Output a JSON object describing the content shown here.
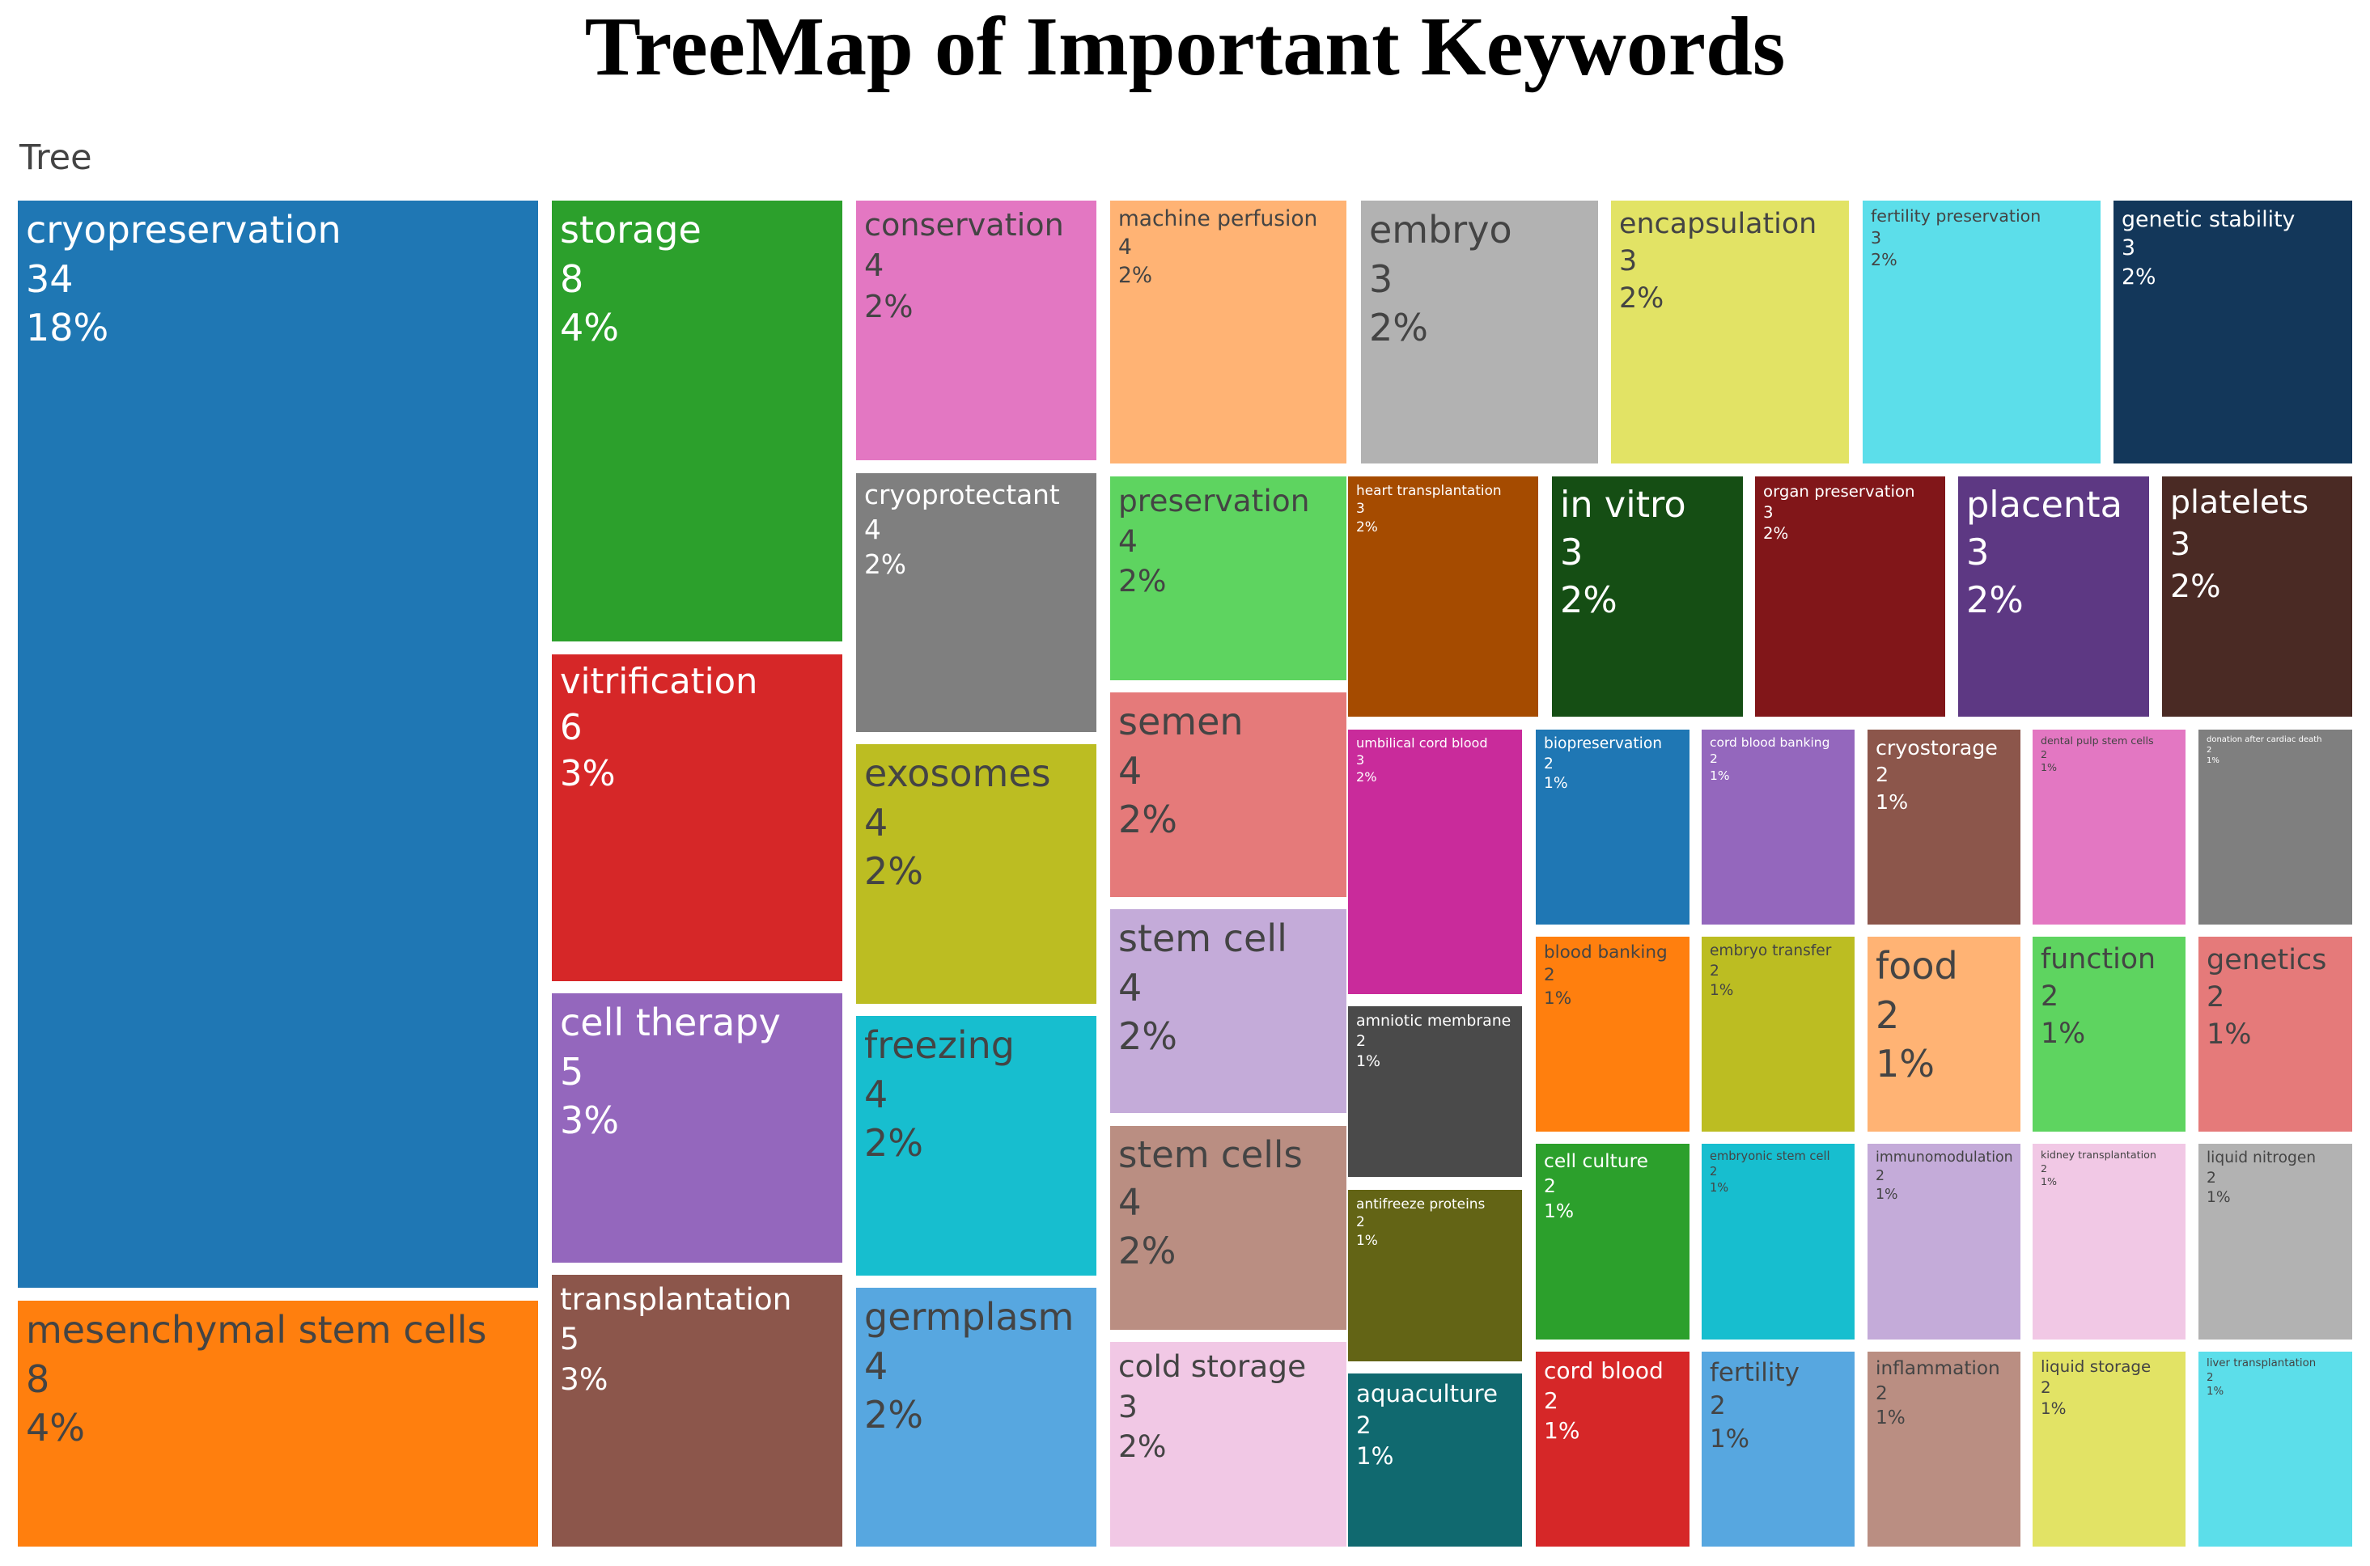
{
  "chart_data": {
    "type": "treemap",
    "title": "TreeMap of Important Keywords",
    "root_label": "Tree",
    "value_format": "count and percent of total",
    "items": [
      {
        "label": "cryopreservation",
        "value": 34,
        "percent": "18%",
        "color": "#1f77b4"
      },
      {
        "label": "mesenchymal stem cells",
        "value": 8,
        "percent": "4%",
        "color": "#ff7f0e"
      },
      {
        "label": "storage",
        "value": 8,
        "percent": "4%",
        "color": "#2ca02c"
      },
      {
        "label": "vitrification",
        "value": 6,
        "percent": "3%",
        "color": "#d62728"
      },
      {
        "label": "cell therapy",
        "value": 5,
        "percent": "3%",
        "color": "#9467bd"
      },
      {
        "label": "transplantation",
        "value": 5,
        "percent": "3%",
        "color": "#8c564b"
      },
      {
        "label": "conservation",
        "value": 4,
        "percent": "2%",
        "color": "#e377c2"
      },
      {
        "label": "cryoprotectant",
        "value": 4,
        "percent": "2%",
        "color": "#7f7f7f"
      },
      {
        "label": "exosomes",
        "value": 4,
        "percent": "2%",
        "color": "#bcbd22"
      },
      {
        "label": "freezing",
        "value": 4,
        "percent": "2%",
        "color": "#17becf"
      },
      {
        "label": "germplasm",
        "value": 4,
        "percent": "2%",
        "color": "#57a7e0"
      },
      {
        "label": "machine perfusion",
        "value": 4,
        "percent": "2%",
        "color": "#ffb374"
      },
      {
        "label": "preservation",
        "value": 4,
        "percent": "2%",
        "color": "#5ed460"
      },
      {
        "label": "semen",
        "value": 4,
        "percent": "2%",
        "color": "#e57a7a"
      },
      {
        "label": "stem cell",
        "value": 4,
        "percent": "2%",
        "color": "#c4abd9"
      },
      {
        "label": "stem cells",
        "value": 4,
        "percent": "2%",
        "color": "#ba8e82"
      },
      {
        "label": "cold storage",
        "value": 3,
        "percent": "2%",
        "color": "#f1c8e5"
      },
      {
        "label": "embryo",
        "value": 3,
        "percent": "2%",
        "color": "#b2b2b2"
      },
      {
        "label": "encapsulation",
        "value": 3,
        "percent": "2%",
        "color": "#e2e365"
      },
      {
        "label": "fertility preservation",
        "value": 3,
        "percent": "2%",
        "color": "#5cdeea"
      },
      {
        "label": "genetic stability",
        "value": 3,
        "percent": "2%",
        "color": "#13375a"
      },
      {
        "label": "heart transplantation",
        "value": 3,
        "percent": "2%",
        "color": "#a54b00"
      },
      {
        "label": "in vitro",
        "value": 3,
        "percent": "2%",
        "color": "#154e14"
      },
      {
        "label": "organ preservation",
        "value": 3,
        "percent": "2%",
        "color": "#811619"
      },
      {
        "label": "placenta",
        "value": 3,
        "percent": "2%",
        "color": "#5d3883"
      },
      {
        "label": "platelets",
        "value": 3,
        "percent": "2%",
        "color": "#4a2a24"
      },
      {
        "label": "umbilical cord blood",
        "value": 3,
        "percent": "2%",
        "color": "#c92b9b"
      },
      {
        "label": "amniotic membrane",
        "value": 2,
        "percent": "1%",
        "color": "#4a4a4a"
      },
      {
        "label": "antifreeze proteins",
        "value": 2,
        "percent": "1%",
        "color": "#636415"
      },
      {
        "label": "aquaculture",
        "value": 2,
        "percent": "1%",
        "color": "#10696f"
      },
      {
        "label": "biopreservation",
        "value": 2,
        "percent": "1%",
        "color": "#1f77b4"
      },
      {
        "label": "blood banking",
        "value": 2,
        "percent": "1%",
        "color": "#ff7f0e"
      },
      {
        "label": "cell culture",
        "value": 2,
        "percent": "1%",
        "color": "#2ca02c"
      },
      {
        "label": "cord blood",
        "value": 2,
        "percent": "1%",
        "color": "#d62728"
      },
      {
        "label": "cord blood banking",
        "value": 2,
        "percent": "1%",
        "color": "#9467bd"
      },
      {
        "label": "embryo transfer",
        "value": 2,
        "percent": "1%",
        "color": "#bcbd22"
      },
      {
        "label": "embryonic stem cell",
        "value": 2,
        "percent": "1%",
        "color": "#17becf"
      },
      {
        "label": "fertility",
        "value": 2,
        "percent": "1%",
        "color": "#57a7e0"
      },
      {
        "label": "cryostorage",
        "value": 2,
        "percent": "1%",
        "color": "#8c564b"
      },
      {
        "label": "food",
        "value": 2,
        "percent": "1%",
        "color": "#ffb374"
      },
      {
        "label": "immunomodulation",
        "value": 2,
        "percent": "1%",
        "color": "#c4abd9"
      },
      {
        "label": "inflammation",
        "value": 2,
        "percent": "1%",
        "color": "#ba8e82"
      },
      {
        "label": "dental pulp stem cells",
        "value": 2,
        "percent": "1%",
        "color": "#e377c2"
      },
      {
        "label": "function",
        "value": 2,
        "percent": "1%",
        "color": "#5ed460"
      },
      {
        "label": "kidney transplantation",
        "value": 2,
        "percent": "1%",
        "color": "#f1c8e5"
      },
      {
        "label": "liquid storage",
        "value": 2,
        "percent": "1%",
        "color": "#e2e365"
      },
      {
        "label": "donation after cardiac death",
        "value": 2,
        "percent": "1%",
        "color": "#7f7f7f"
      },
      {
        "label": "genetics",
        "value": 2,
        "percent": "1%",
        "color": "#e57a7a"
      },
      {
        "label": "liquid nitrogen",
        "value": 2,
        "percent": "1%",
        "color": "#b2b2b2"
      },
      {
        "label": "liver transplantation",
        "value": 2,
        "percent": "1%",
        "color": "#5cdeea"
      }
    ]
  }
}
